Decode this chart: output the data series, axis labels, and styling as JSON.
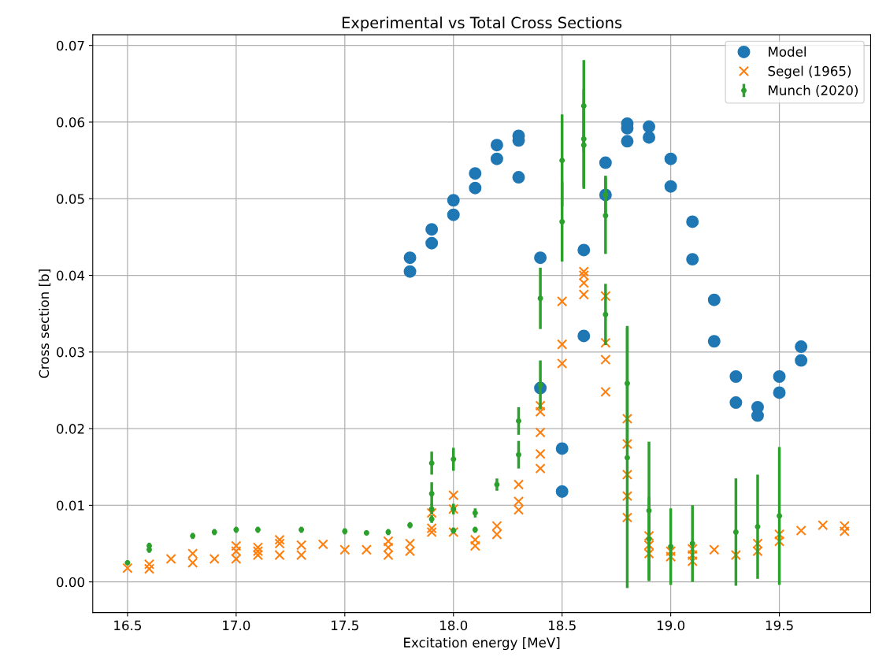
{
  "chart_data": {
    "type": "scatter",
    "title": "Experimental vs Total Cross Sections",
    "xlabel": "Excitation energy [MeV]",
    "ylabel": "Cross section [b]",
    "xlim": [
      16.34,
      19.92
    ],
    "ylim": [
      -0.004,
      0.0714
    ],
    "xticks": [
      16.5,
      {
        "value": 17,
        "label": "17.0"
      },
      17.5,
      {
        "value": 18,
        "label": "18.0"
      },
      18.5,
      {
        "value": 19,
        "label": "19.0"
      },
      19.5
    ],
    "yticks": [
      {
        "value": 0,
        "label": "0.00"
      },
      {
        "value": 0.01,
        "label": "0.01"
      },
      {
        "value": 0.02,
        "label": "0.02"
      },
      {
        "value": 0.03,
        "label": "0.03"
      },
      {
        "value": 0.04,
        "label": "0.04"
      },
      {
        "value": 0.05,
        "label": "0.05"
      },
      {
        "value": 0.06,
        "label": "0.06"
      },
      {
        "value": 0.07,
        "label": "0.07"
      }
    ],
    "grid": true,
    "legend": "top right",
    "series": [
      {
        "name": "Model",
        "color": "#1f77b4",
        "marker": "circle",
        "x": [
          17.8,
          17.8,
          17.9,
          17.9,
          18.0,
          18.0,
          18.1,
          18.1,
          18.2,
          18.2,
          18.3,
          18.3,
          18.3,
          18.4,
          18.4,
          18.5,
          18.5,
          18.6,
          18.6,
          18.7,
          18.7,
          18.8,
          18.8,
          18.8,
          18.9,
          18.9,
          19.0,
          19.0,
          19.1,
          19.1,
          19.2,
          19.2,
          19.3,
          19.3,
          19.4,
          19.4,
          19.5,
          19.5,
          19.6,
          19.6
        ],
        "values": [
          0.0423,
          0.0405,
          0.046,
          0.0442,
          0.0498,
          0.0479,
          0.0533,
          0.0514,
          0.057,
          0.0552,
          0.0582,
          0.0576,
          0.0528,
          0.0423,
          0.0253,
          0.0174,
          0.0118,
          0.0433,
          0.0321,
          0.0547,
          0.0505,
          0.0598,
          0.0592,
          0.0575,
          0.0594,
          0.058,
          0.0552,
          0.0516,
          0.047,
          0.0421,
          0.0368,
          0.0314,
          0.0268,
          0.0234,
          0.0228,
          0.0217,
          0.0268,
          0.0247,
          0.0307,
          0.0289
        ]
      },
      {
        "name": "Segel (1965)",
        "color": "#ff7f0e",
        "marker": "cross",
        "x": [
          16.5,
          16.6,
          16.6,
          16.7,
          16.8,
          16.8,
          16.9,
          17.0,
          17.0,
          17.0,
          17.1,
          17.1,
          17.1,
          17.2,
          17.2,
          17.2,
          17.3,
          17.3,
          17.4,
          17.5,
          17.6,
          17.7,
          17.7,
          17.7,
          17.8,
          17.8,
          17.9,
          17.9,
          17.9,
          18.0,
          18.0,
          18.0,
          18.1,
          18.1,
          18.2,
          18.2,
          18.3,
          18.3,
          18.3,
          18.4,
          18.4,
          18.4,
          18.4,
          18.4,
          18.5,
          18.5,
          18.5,
          18.6,
          18.6,
          18.6,
          18.6,
          18.7,
          18.7,
          18.7,
          18.7,
          18.8,
          18.8,
          18.8,
          18.8,
          18.8,
          18.9,
          18.9,
          18.9,
          19.0,
          19.0,
          19.1,
          19.1,
          19.1,
          19.2,
          19.3,
          19.4,
          19.4,
          19.5,
          19.5,
          19.6,
          19.7,
          19.8,
          19.8
        ],
        "values": [
          0.0018,
          0.0023,
          0.0017,
          0.003,
          0.0037,
          0.0025,
          0.003,
          0.0047,
          0.004,
          0.003,
          0.0045,
          0.004,
          0.0035,
          0.0055,
          0.005,
          0.0035,
          0.0048,
          0.0035,
          0.0049,
          0.0042,
          0.0042,
          0.0053,
          0.0045,
          0.0035,
          0.005,
          0.004,
          0.009,
          0.007,
          0.0065,
          0.0113,
          0.0095,
          0.0065,
          0.0055,
          0.0047,
          0.0073,
          0.0062,
          0.0127,
          0.0105,
          0.0094,
          0.023,
          0.0222,
          0.0195,
          0.0167,
          0.0148,
          0.0366,
          0.031,
          0.0285,
          0.0405,
          0.04,
          0.039,
          0.0375,
          0.0373,
          0.0312,
          0.029,
          0.0248,
          0.0213,
          0.018,
          0.014,
          0.0112,
          0.0084,
          0.006,
          0.0048,
          0.0037,
          0.004,
          0.0033,
          0.0043,
          0.0035,
          0.0027,
          0.0042,
          0.0035,
          0.005,
          0.004,
          0.0062,
          0.0053,
          0.0067,
          0.0074,
          0.0073,
          0.0066
        ]
      },
      {
        "name": "Munch (2020)",
        "color": "#2ca02c",
        "marker": "circle",
        "x": [
          16.5,
          16.6,
          16.6,
          16.8,
          16.9,
          17.0,
          17.1,
          17.3,
          17.5,
          17.6,
          17.7,
          17.8,
          17.9,
          17.9,
          17.9,
          17.9,
          18.0,
          18.0,
          18.0,
          18.1,
          18.1,
          18.2,
          18.3,
          18.3,
          18.4,
          18.4,
          18.5,
          18.5,
          18.6,
          18.6,
          18.6,
          18.7,
          18.7,
          18.7,
          18.8,
          18.8,
          18.9,
          18.9,
          19.0,
          19.1,
          19.3,
          19.4,
          19.5
        ],
        "values": [
          0.0025,
          0.0047,
          0.0042,
          0.006,
          0.0065,
          0.0068,
          0.0068,
          0.0068,
          0.0066,
          0.0064,
          0.0065,
          0.0074,
          0.0155,
          0.0115,
          0.0095,
          0.0082,
          0.016,
          0.0095,
          0.0067,
          0.009,
          0.0068,
          0.0127,
          0.021,
          0.0166,
          0.037,
          0.0257,
          0.055,
          0.047,
          0.0621,
          0.0578,
          0.057,
          0.0505,
          0.0478,
          0.0349,
          0.0259,
          0.0162,
          0.0093,
          0.0056,
          0.0046,
          0.005,
          0.0065,
          0.0072,
          0.0086
        ],
        "errors": [
          0.0003,
          0.0004,
          0.0004,
          0.0004,
          0.0004,
          0.0004,
          0.0004,
          0.0004,
          0.0004,
          0.0003,
          0.0004,
          0.0004,
          0.0015,
          0.0015,
          0.0007,
          0.0005,
          0.0015,
          0.0007,
          0.0004,
          0.0006,
          0.0004,
          0.0008,
          0.0018,
          0.0018,
          0.004,
          0.0032,
          0.006,
          0.0052,
          0.006,
          0.0065,
          0.0055,
          0.0025,
          0.005,
          0.004,
          0.0075,
          0.017,
          0.009,
          0.0055,
          0.005,
          0.005,
          0.007,
          0.0068,
          0.009
        ]
      }
    ]
  }
}
